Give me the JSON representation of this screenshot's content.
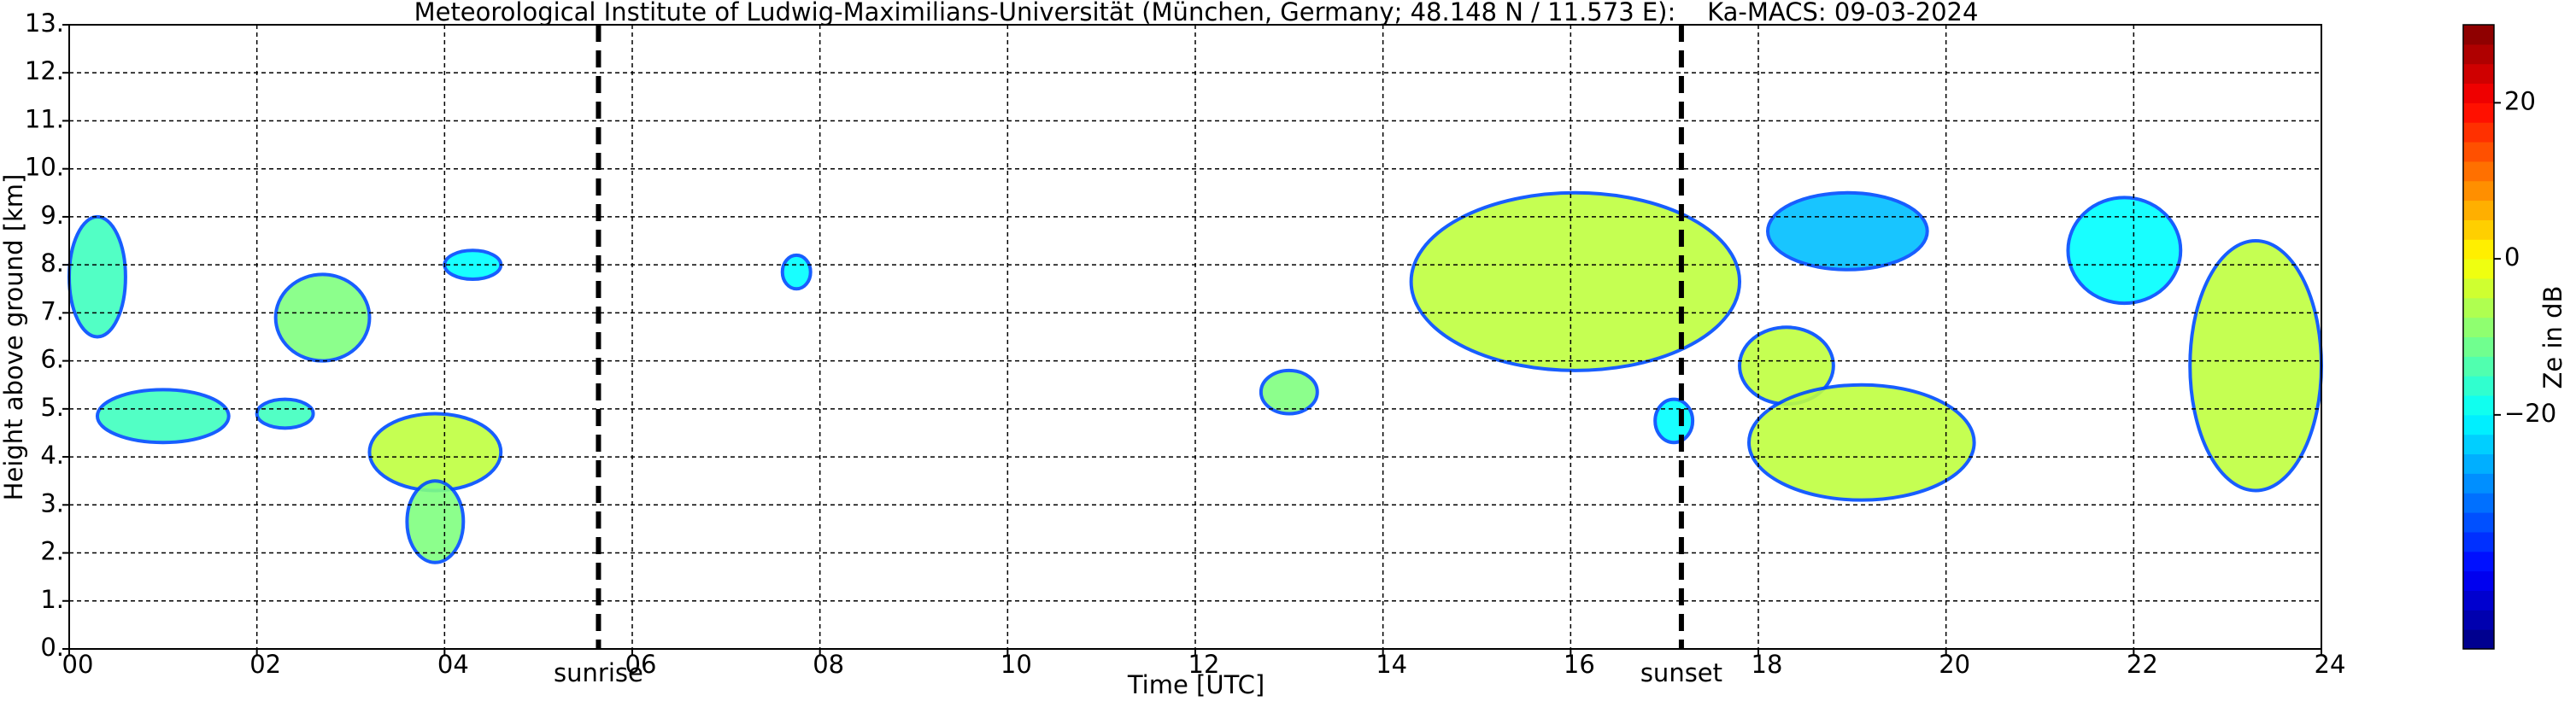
{
  "chart_data": {
    "type": "heatmap",
    "title": "Meteorological Institute of Ludwig-Maximilians-Universität (München, Germany; 48.148 N / 11.573 E):    Ka-MACS: 09-03-2024",
    "x_label": "Time [UTC]",
    "y_label": "Height above ground [km]",
    "colorbar_label": "Ze in dB",
    "xlim": [
      0,
      24
    ],
    "xticks": [
      {
        "value": 0,
        "label": "00"
      },
      {
        "value": 2,
        "label": "02"
      },
      {
        "value": 4,
        "label": "04"
      },
      {
        "value": 6,
        "label": "06"
      },
      {
        "value": 8,
        "label": "08"
      },
      {
        "value": 10,
        "label": "10"
      },
      {
        "value": 12,
        "label": "12"
      },
      {
        "value": 14,
        "label": "14"
      },
      {
        "value": 16,
        "label": "16"
      },
      {
        "value": 18,
        "label": "18"
      },
      {
        "value": 20,
        "label": "20"
      },
      {
        "value": 22,
        "label": "22"
      },
      {
        "value": 24,
        "label": "24"
      }
    ],
    "ylim": [
      0,
      13
    ],
    "yticks": [
      {
        "value": 0,
        "label": "0."
      },
      {
        "value": 1,
        "label": "1."
      },
      {
        "value": 2,
        "label": "2."
      },
      {
        "value": 3,
        "label": "3."
      },
      {
        "value": 4,
        "label": "4."
      },
      {
        "value": 5,
        "label": "5."
      },
      {
        "value": 6,
        "label": "6."
      },
      {
        "value": 7,
        "label": "7."
      },
      {
        "value": 8,
        "label": "8."
      },
      {
        "value": 9,
        "label": "9."
      },
      {
        "value": 10,
        "label": "10."
      },
      {
        "value": 11,
        "label": "11."
      },
      {
        "value": 12,
        "label": "12."
      },
      {
        "value": 13,
        "label": "13."
      }
    ],
    "zlim": [
      -50,
      30
    ],
    "zticks": [
      {
        "value": -20,
        "label": "−20"
      },
      0,
      20
    ],
    "grid": true,
    "annotations": [
      {
        "text": "sunrise",
        "x": 5.64
      },
      {
        "text": "sunset",
        "x": 17.18
      }
    ],
    "echoes": [
      {
        "x": [
          0,
          0.6
        ],
        "y": [
          6.5,
          9
        ],
        "ze": -15
      },
      {
        "x": [
          0.3,
          1.7
        ],
        "y": [
          4.3,
          5.4
        ],
        "ze": -15
      },
      {
        "x": [
          2.2,
          3.2
        ],
        "y": [
          6,
          7.8
        ],
        "ze": -10
      },
      {
        "x": [
          2,
          2.6
        ],
        "y": [
          4.6,
          5.2
        ],
        "ze": -15
      },
      {
        "x": [
          3.2,
          4.6
        ],
        "y": [
          3.3,
          4.9
        ],
        "ze": -5
      },
      {
        "x": [
          3.6,
          4.2
        ],
        "y": [
          1.8,
          3.5
        ],
        "ze": -10
      },
      {
        "x": [
          4,
          4.6
        ],
        "y": [
          7.7,
          8.3
        ],
        "ze": -20
      },
      {
        "x": [
          7.6,
          7.9
        ],
        "y": [
          7.5,
          8.2
        ],
        "ze": -20
      },
      {
        "x": [
          12.7,
          13.3
        ],
        "y": [
          4.9,
          5.8
        ],
        "ze": -10
      },
      {
        "x": [
          14.3,
          17.8
        ],
        "y": [
          5.8,
          9.5
        ],
        "ze": -5
      },
      {
        "x": [
          16.9,
          17.3
        ],
        "y": [
          4.3,
          5.2
        ],
        "ze": -20
      },
      {
        "x": [
          17.8,
          18.8
        ],
        "y": [
          5.1,
          6.7
        ],
        "ze": -5
      },
      {
        "x": [
          17.9,
          20.3
        ],
        "y": [
          3.1,
          5.5
        ],
        "ze": -5
      },
      {
        "x": [
          18.1,
          19.8
        ],
        "y": [
          7.9,
          9.5
        ],
        "ze": -25
      },
      {
        "x": [
          21.3,
          22.5
        ],
        "y": [
          7.2,
          9.4
        ],
        "ze": -20
      },
      {
        "x": [
          22.6,
          24
        ],
        "y": [
          3.3,
          8.5
        ],
        "ze": -5
      }
    ]
  }
}
